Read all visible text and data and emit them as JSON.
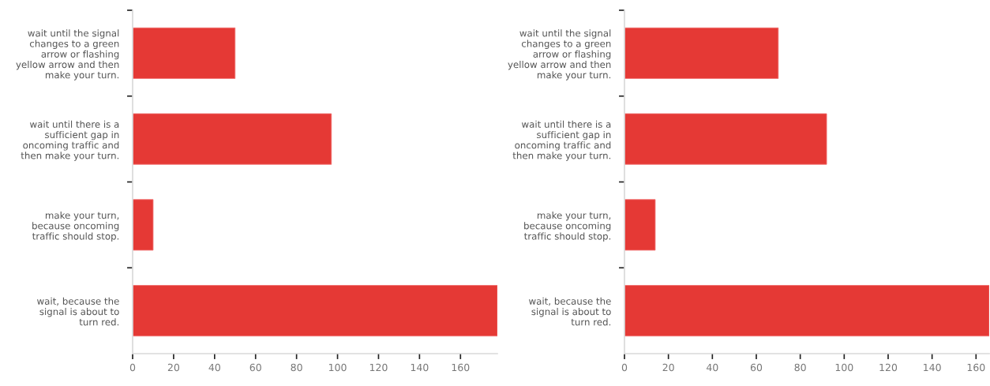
{
  "chart_data": [
    {
      "type": "bar",
      "orientation": "horizontal",
      "categories": [
        "wait until the signal\nchanges to a green\narrow or flashing\nyellow arrow and then\nmake your turn.",
        "wait until there is a\nsufficient gap in\noncoming traffic and\nthen make your turn.",
        "make your turn,\nbecause oncoming\ntraffic should stop.",
        "wait, because the\nsignal is about to\nturn red."
      ],
      "values": [
        50,
        97,
        10,
        178
      ],
      "color": "#e53935",
      "xlim": [
        0,
        178
      ],
      "xticks": [
        0,
        20,
        40,
        60,
        80,
        100,
        120,
        140,
        160
      ],
      "grid": false
    },
    {
      "type": "bar",
      "orientation": "horizontal",
      "categories": [
        "wait until the signal\nchanges to a green\narrow or flashing\nyellow arrow and then\nmake your turn.",
        "wait until there is a\nsufficient gap in\noncoming traffic and\nthen make your turn.",
        "make your turn,\nbecause oncoming\ntraffic should stop.",
        "wait, because the\nsignal is about to\nturn red."
      ],
      "values": [
        70,
        92,
        14,
        166
      ],
      "color": "#e53935",
      "xlim": [
        0,
        166
      ],
      "xticks": [
        0,
        20,
        40,
        60,
        80,
        100,
        120,
        140,
        160
      ],
      "grid": false
    }
  ]
}
